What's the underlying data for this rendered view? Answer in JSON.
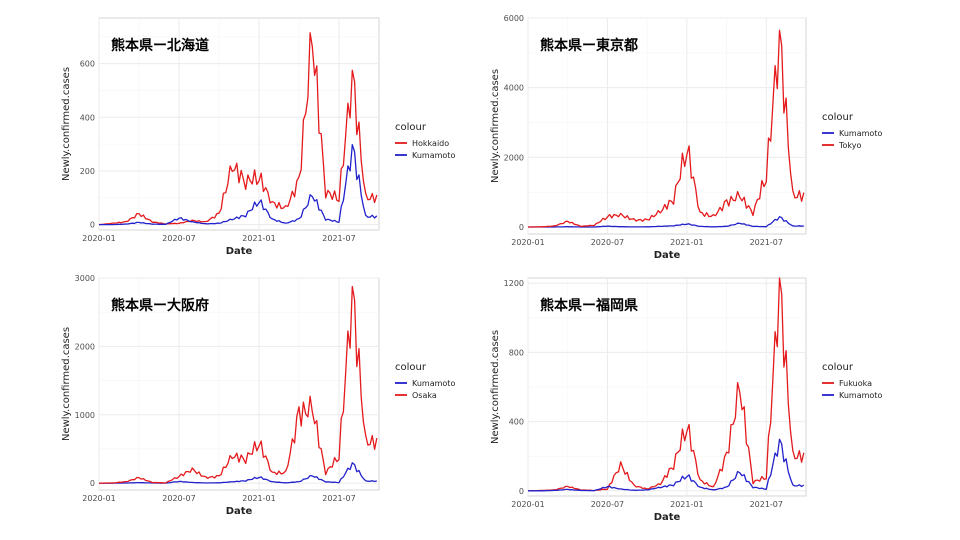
{
  "colors": {
    "red": "#e41a1c",
    "blue": "#2222cc"
  },
  "chart_data": [
    {
      "type": "line",
      "title": "熊本県ー北海道",
      "xlabel": "Date",
      "ylabel": "Newly.confirmed.cases",
      "xticks": [
        "2020-01",
        "2020-07",
        "2021-01",
        "2021-07"
      ],
      "xlim": [
        "2020-01",
        "2021-10"
      ],
      "yticks": [
        0,
        200,
        400,
        600
      ],
      "ylim": [
        -20,
        770
      ],
      "legend_title": "colour",
      "legend_position": "right",
      "grid": true,
      "x": [
        "2020-01",
        "2020-02",
        "2020-03",
        "2020-04",
        "2020-05",
        "2020-06",
        "2020-07",
        "2020-08",
        "2020-09",
        "2020-10",
        "2020-11",
        "2020-12",
        "2021-01",
        "2021-02",
        "2021-03",
        "2021-04",
        "2021-05",
        "2021-06",
        "2021-07",
        "2021-08",
        "2021-09"
      ],
      "series": [
        {
          "name": "Hokkaido",
          "color": "red",
          "values": [
            0,
            5,
            10,
            40,
            10,
            3,
            5,
            15,
            10,
            40,
            220,
            160,
            180,
            80,
            60,
            160,
            700,
            120,
            100,
            560,
            100
          ]
        },
        {
          "name": "Kumamoto",
          "color": "blue",
          "values": [
            0,
            0,
            2,
            8,
            2,
            1,
            25,
            10,
            3,
            5,
            20,
            35,
            90,
            20,
            5,
            20,
            110,
            20,
            10,
            290,
            30
          ]
        }
      ]
    },
    {
      "type": "line",
      "title": "熊本県ー東京都",
      "xlabel": "Date",
      "ylabel": "Newly.confirmed.cases",
      "xticks": [
        "2020-01",
        "2020-07",
        "2021-01",
        "2021-07"
      ],
      "xlim": [
        "2020-01",
        "2021-10"
      ],
      "yticks": [
        0,
        2000,
        4000,
        6000
      ],
      "ylim": [
        -200,
        6000
      ],
      "legend_title": "colour",
      "legend_position": "right",
      "grid": true,
      "x": [
        "2020-01",
        "2020-02",
        "2020-03",
        "2020-04",
        "2020-05",
        "2020-06",
        "2020-07",
        "2020-08",
        "2020-09",
        "2020-10",
        "2020-11",
        "2020-12",
        "2021-01",
        "2021-02",
        "2021-03",
        "2021-04",
        "2021-05",
        "2021-06",
        "2021-07",
        "2021-08",
        "2021-09"
      ],
      "series": [
        {
          "name": "Kumamoto",
          "color": "blue",
          "values": [
            0,
            0,
            2,
            8,
            2,
            1,
            25,
            10,
            3,
            5,
            20,
            35,
            90,
            20,
            5,
            20,
            110,
            20,
            10,
            290,
            30
          ]
        },
        {
          "name": "Tokyo",
          "color": "red",
          "values": [
            0,
            5,
            30,
            160,
            20,
            50,
            300,
            350,
            200,
            200,
            450,
            800,
            2300,
            400,
            300,
            700,
            900,
            400,
            1500,
            5500,
            900
          ]
        }
      ]
    },
    {
      "type": "line",
      "title": "熊本県ー大阪府",
      "xlabel": "Date",
      "ylabel": "Newly.confirmed.cases",
      "xticks": [
        "2020-01",
        "2020-07",
        "2021-01",
        "2021-07"
      ],
      "xlim": [
        "2020-01",
        "2021-10"
      ],
      "yticks": [
        0,
        1000,
        2000,
        3000
      ],
      "ylim": [
        -100,
        3000
      ],
      "legend_title": "colour",
      "legend_position": "right",
      "grid": true,
      "x": [
        "2020-01",
        "2020-02",
        "2020-03",
        "2020-04",
        "2020-05",
        "2020-06",
        "2020-07",
        "2020-08",
        "2020-09",
        "2020-10",
        "2020-11",
        "2020-12",
        "2021-01",
        "2021-02",
        "2021-03",
        "2021-04",
        "2021-05",
        "2021-06",
        "2021-07",
        "2021-08",
        "2021-09"
      ],
      "series": [
        {
          "name": "Kumamoto",
          "color": "blue",
          "values": [
            0,
            0,
            2,
            8,
            2,
            1,
            25,
            10,
            3,
            5,
            20,
            35,
            90,
            20,
            5,
            20,
            110,
            20,
            10,
            290,
            30
          ]
        },
        {
          "name": "Osaka",
          "color": "red",
          "values": [
            0,
            3,
            20,
            80,
            10,
            5,
            100,
            200,
            80,
            100,
            400,
            350,
            600,
            150,
            150,
            1000,
            1100,
            150,
            400,
            2800,
            600
          ]
        }
      ]
    },
    {
      "type": "line",
      "title": "熊本県ー福岡県",
      "xlabel": "Date",
      "ylabel": "Newly.confirmed.cases",
      "xticks": [
        "2020-01",
        "2020-07",
        "2021-01",
        "2021-07"
      ],
      "xlim": [
        "2020-01",
        "2021-10"
      ],
      "yticks": [
        0,
        400,
        800,
        1200
      ],
      "ylim": [
        -30,
        1230
      ],
      "legend_title": "colour",
      "legend_position": "right",
      "grid": true,
      "x": [
        "2020-01",
        "2020-02",
        "2020-03",
        "2020-04",
        "2020-05",
        "2020-06",
        "2020-07",
        "2020-08",
        "2020-09",
        "2020-10",
        "2020-11",
        "2020-12",
        "2021-01",
        "2021-02",
        "2021-03",
        "2021-04",
        "2021-05",
        "2021-06",
        "2021-07",
        "2021-08",
        "2021-09"
      ],
      "series": [
        {
          "name": "Fukuoka",
          "color": "red",
          "values": [
            0,
            2,
            5,
            25,
            5,
            2,
            10,
            150,
            30,
            10,
            40,
            150,
            380,
            60,
            20,
            200,
            600,
            50,
            80,
            1200,
            200
          ]
        },
        {
          "name": "Kumamoto",
          "color": "blue",
          "values": [
            0,
            0,
            2,
            8,
            2,
            1,
            25,
            10,
            3,
            5,
            20,
            35,
            90,
            20,
            5,
            20,
            110,
            20,
            10,
            290,
            30
          ]
        }
      ]
    }
  ]
}
